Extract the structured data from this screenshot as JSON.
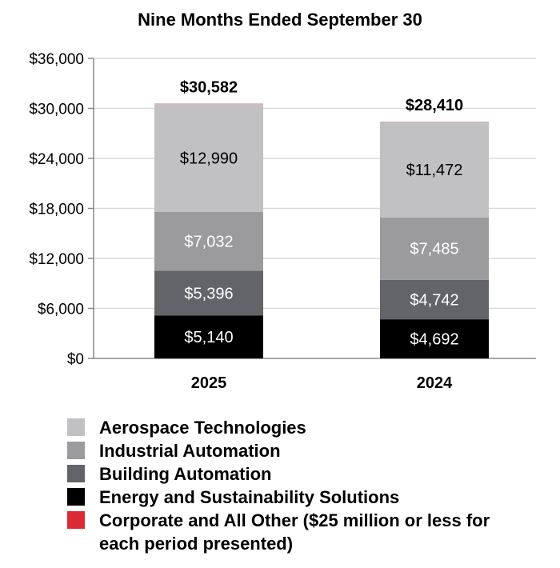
{
  "chart_data": {
    "type": "bar",
    "stacked": true,
    "title": "Nine Months Ended September 30",
    "xlabel": "",
    "ylabel": "",
    "categories": [
      "2025",
      "2024"
    ],
    "ylim": [
      0,
      36000
    ],
    "yticks": [
      0,
      6000,
      12000,
      18000,
      24000,
      30000,
      36000
    ],
    "ytick_labels": [
      "$0",
      "$6,000",
      "$12,000",
      "$18,000",
      "$24,000",
      "$30,000",
      "$36,000"
    ],
    "grid": true,
    "totals": [
      30582,
      28410
    ],
    "total_labels": [
      "$30,582",
      "$28,410"
    ],
    "series": [
      {
        "name": "Energy and Sustainability Solutions",
        "values": [
          5140,
          4692
        ],
        "labels": [
          "$5,140",
          "$4,692"
        ],
        "color": "#000000",
        "label_color": "#ffffff"
      },
      {
        "name": "Building Automation",
        "values": [
          5396,
          4742
        ],
        "labels": [
          "$5,396",
          "$4,742"
        ],
        "color": "#626469",
        "label_color": "#ffffff"
      },
      {
        "name": "Industrial Automation",
        "values": [
          7032,
          7485
        ],
        "labels": [
          "$7,032",
          "$7,485"
        ],
        "color": "#9b9b9d",
        "label_color": "#ffffff"
      },
      {
        "name": "Aerospace Technologies",
        "values": [
          12990,
          11472
        ],
        "labels": [
          "$12,990",
          "$11,472"
        ],
        "color": "#c1c1c3",
        "label_color": "#000000"
      },
      {
        "name": "Corporate and All Other ($25 million or less for each period presented)",
        "values": [
          25,
          19
        ],
        "labels": [
          "",
          ""
        ],
        "color": "#dc2a35",
        "label_color": "#000000"
      }
    ],
    "legend": {
      "placement": "bottom",
      "items": [
        {
          "label": "Aerospace Technologies",
          "color": "#c1c1c3"
        },
        {
          "label": "Industrial Automation",
          "color": "#9b9b9d"
        },
        {
          "label": "Building Automation",
          "color": "#626469"
        },
        {
          "label": "Energy and Sustainability Solutions",
          "color": "#000000"
        },
        {
          "label": "Corporate and All Other ($25 million or less for each period presented)",
          "color": "#dc2a35"
        }
      ]
    }
  }
}
